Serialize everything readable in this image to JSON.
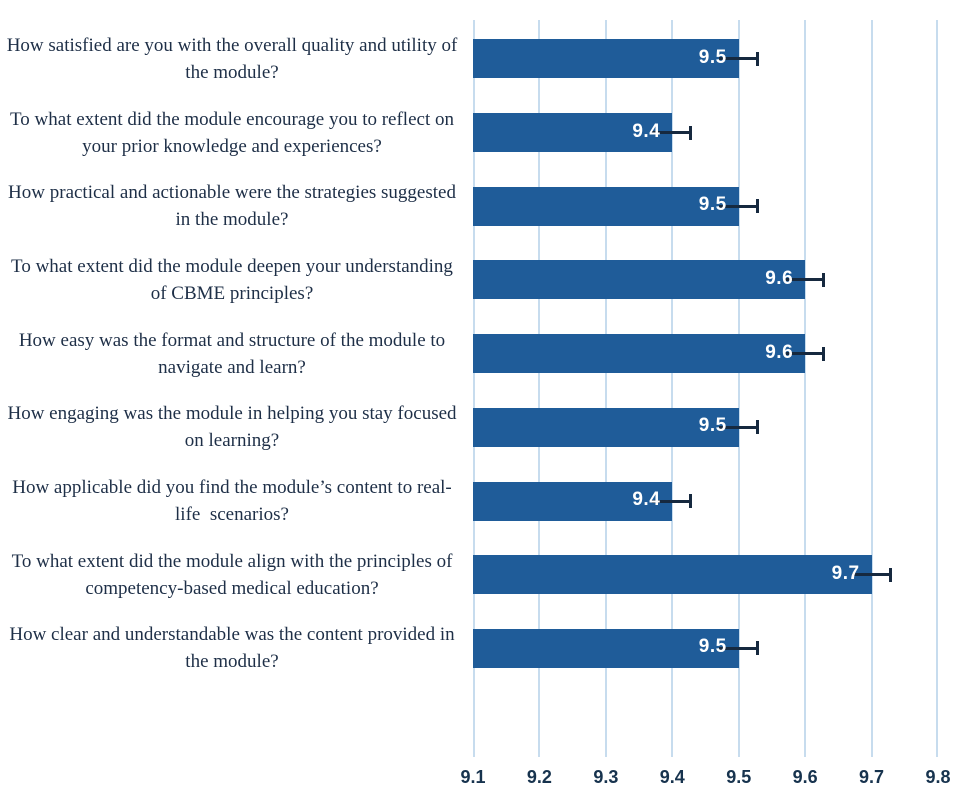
{
  "chart_data": {
    "type": "bar",
    "orientation": "horizontal",
    "title": "",
    "xlabel": "",
    "ylabel": "",
    "categories": [
      "How satisfied are you with the overall quality and utility of\nthe module?",
      "To what extent did the module encourage you to reflect on\nyour prior knowledge and experiences?",
      "How practical and actionable were the strategies suggested\nin the module?",
      "To what extent did the module deepen your understanding\nof CBME principles?",
      "How easy was the format and structure of the module to\nnavigate and learn?",
      "How engaging was the module in helping you stay focused\non learning?",
      "How applicable did you find the module’s content to real-\nlife  scenarios?",
      "To what extent did the module align with the principles of\ncompetency-based medical education?",
      "How clear and understandable was the content provided in\nthe module?"
    ],
    "values": [
      9.5,
      9.4,
      9.5,
      9.6,
      9.6,
      9.5,
      9.4,
      9.7,
      9.5
    ],
    "value_labels": [
      "9.5",
      "9.4",
      "9.5",
      "9.6",
      "9.6",
      "9.5",
      "9.4",
      "9.7",
      "9.5"
    ],
    "error_bar": 0.03,
    "xlim": [
      9.1,
      9.8
    ],
    "xticks": [
      "9.1",
      "9.2",
      "9.3",
      "9.4",
      "9.5",
      "9.6",
      "9.7",
      "9.8"
    ],
    "grid": "vertical",
    "legend": "none",
    "colors": {
      "bar_fill": "#1f5c99",
      "gridline": "#c7dcee",
      "error_bar": "#16293f",
      "bar_value_text": "#ffffff",
      "axis_tick_text": "#17334e",
      "category_text": "#1e2f47",
      "background": "#ffffff"
    }
  }
}
